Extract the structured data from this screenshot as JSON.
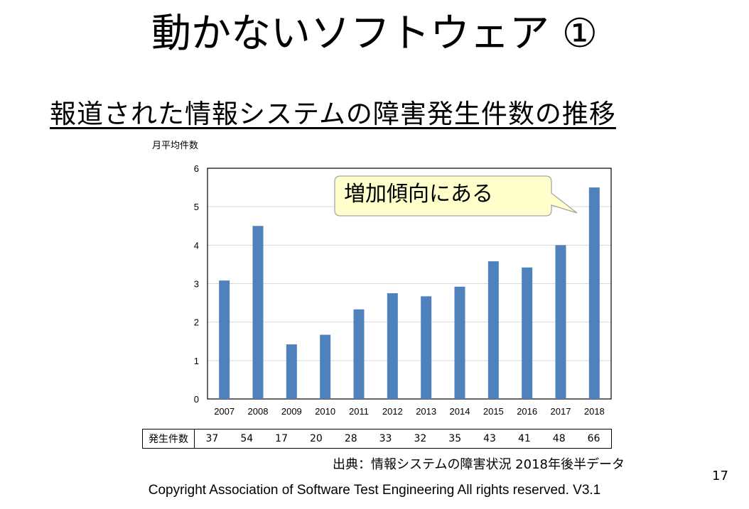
{
  "slide": {
    "title": "動かないソフトウェア ①",
    "subtitle": "報道された情報システムの障害発生件数の推移",
    "callout": "増加傾向にある",
    "table_header": "発生件数",
    "source": "出典：情報システムの障害状況 2018年後半データ",
    "page_number": "17",
    "copyright": "Copyright Association of Software Test Engineering All rights reserved.  V3.1"
  },
  "colors": {
    "bar": "#4f81bd",
    "grid": "#d9d9d9",
    "callout_fill": "#ffffcc"
  },
  "chart_data": {
    "type": "bar",
    "ylabel": "月平均件数",
    "ylim": [
      0,
      6
    ],
    "yticks": [
      "0",
      "1",
      "2",
      "3",
      "4",
      "5",
      "6"
    ],
    "grid": true,
    "categories": [
      "2007",
      "2008",
      "2009",
      "2010",
      "2011",
      "2012",
      "2013",
      "2014",
      "2015",
      "2016",
      "2017",
      "2018"
    ],
    "values": [
      3.08,
      4.5,
      1.42,
      1.67,
      2.33,
      2.75,
      2.67,
      2.92,
      3.58,
      3.42,
      4.0,
      5.5
    ],
    "counts": [
      "37",
      "54",
      "17",
      "20",
      "28",
      "33",
      "32",
      "35",
      "43",
      "41",
      "48",
      "66"
    ]
  }
}
